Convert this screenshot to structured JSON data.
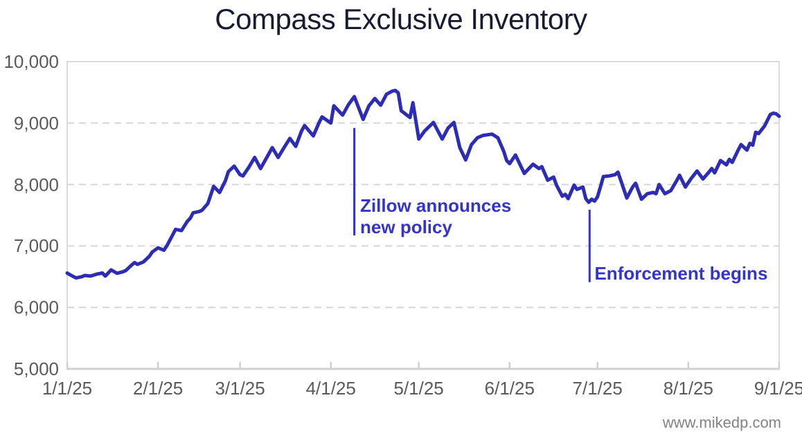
{
  "chart_data": {
    "type": "line",
    "title": "Compass Exclusive Inventory",
    "x_unit": "days since 1/1/25",
    "x": [
      0,
      1,
      3,
      5,
      6,
      8,
      10,
      12,
      13,
      15,
      17,
      19,
      20,
      22,
      23,
      24,
      26,
      28,
      29,
      31,
      33,
      34,
      36,
      37,
      39,
      41,
      42,
      43,
      45,
      46,
      48,
      50,
      52,
      54,
      55,
      57,
      59,
      60,
      62,
      64,
      66,
      68,
      70,
      72,
      74,
      76,
      78,
      80,
      81,
      84,
      86,
      87,
      90,
      91,
      94,
      96,
      98,
      101,
      103,
      105,
      107,
      109,
      111,
      112,
      113,
      114,
      117,
      118,
      120,
      122,
      125,
      128,
      130,
      132,
      134,
      136,
      138,
      140,
      142,
      145,
      147,
      149,
      150,
      151,
      153,
      156,
      159,
      161,
      162,
      164,
      166,
      167,
      169,
      170,
      171,
      173,
      174,
      176,
      177,
      178,
      179,
      180,
      181,
      182,
      183,
      185,
      187,
      188,
      191,
      193,
      194,
      196,
      198,
      200,
      201,
      202,
      204,
      206,
      208,
      209,
      211,
      213,
      215,
      217,
      219,
      220,
      221,
      223,
      225,
      226,
      227,
      229,
      230,
      232,
      233,
      234,
      235,
      236,
      238,
      240,
      241,
      242,
      243
    ],
    "y": [
      6560,
      6530,
      6480,
      6500,
      6520,
      6510,
      6540,
      6560,
      6510,
      6610,
      6555,
      6580,
      6600,
      6690,
      6730,
      6700,
      6740,
      6830,
      6900,
      6970,
      6930,
      7000,
      7180,
      7270,
      7250,
      7400,
      7450,
      7540,
      7560,
      7580,
      7690,
      7970,
      7870,
      8060,
      8210,
      8300,
      8160,
      8140,
      8280,
      8440,
      8260,
      8430,
      8600,
      8440,
      8600,
      8750,
      8620,
      8870,
      8960,
      8790,
      9010,
      9100,
      9000,
      9280,
      9130,
      9300,
      9430,
      9060,
      9280,
      9400,
      9290,
      9470,
      9520,
      9530,
      9490,
      9200,
      9090,
      9330,
      8740,
      8870,
      9010,
      8740,
      8920,
      9010,
      8600,
      8400,
      8650,
      8760,
      8800,
      8820,
      8760,
      8540,
      8390,
      8340,
      8480,
      8180,
      8330,
      8260,
      8290,
      8070,
      8120,
      7990,
      7810,
      7840,
      7770,
      7990,
      7920,
      7960,
      7770,
      7710,
      7760,
      7730,
      7800,
      7960,
      8130,
      8140,
      8160,
      8200,
      7780,
      7960,
      8020,
      7760,
      7850,
      7870,
      7850,
      8000,
      7850,
      7900,
      8060,
      8150,
      7960,
      8100,
      8220,
      8090,
      8200,
      8260,
      8190,
      8390,
      8320,
      8410,
      8360,
      8560,
      8650,
      8560,
      8670,
      8640,
      8850,
      8830,
      8950,
      9140,
      9160,
      9150,
      9110
    ],
    "ylim": [
      5000,
      10000
    ],
    "yticks": {
      "values": [
        5000,
        6000,
        7000,
        8000,
        9000,
        10000
      ],
      "labels": [
        "5,000",
        "6,000",
        "7,000",
        "8,000",
        "9,000",
        "10,000"
      ]
    },
    "xticks": {
      "days": [
        0,
        31,
        59,
        90,
        120,
        151,
        181,
        212,
        243
      ],
      "labels": [
        "1/1/25",
        "2/1/25",
        "3/1/25",
        "4/1/25",
        "5/1/25",
        "6/1/25",
        "7/1/25",
        "8/1/25",
        "9/1/25"
      ]
    },
    "grid": "horizontal-dashed",
    "legend": "none",
    "annotations": [
      {
        "lines": [
          "Zillow announces",
          "new policy"
        ],
        "marker_day": 98,
        "marker_top_value": 8920,
        "marker_bottom_value": 7170,
        "text_day": 100,
        "text_top_value": 7830
      },
      {
        "lines": [
          "Enforcement begins"
        ],
        "marker_day": 178.3,
        "marker_top_value": 7590,
        "marker_bottom_value": 6410,
        "text_day": 180,
        "text_top_value": 6720
      }
    ],
    "watermark": "www.mikedp.com"
  },
  "colors": {
    "line": "#2c2cb4",
    "annotation": "#3434cd",
    "grid": "#d6d6d6",
    "border": "#dadada",
    "axis": "#cfcfcf",
    "tick_text": "#5a5a5a",
    "title_text": "#171c33",
    "watermark_text": "#828282"
  }
}
